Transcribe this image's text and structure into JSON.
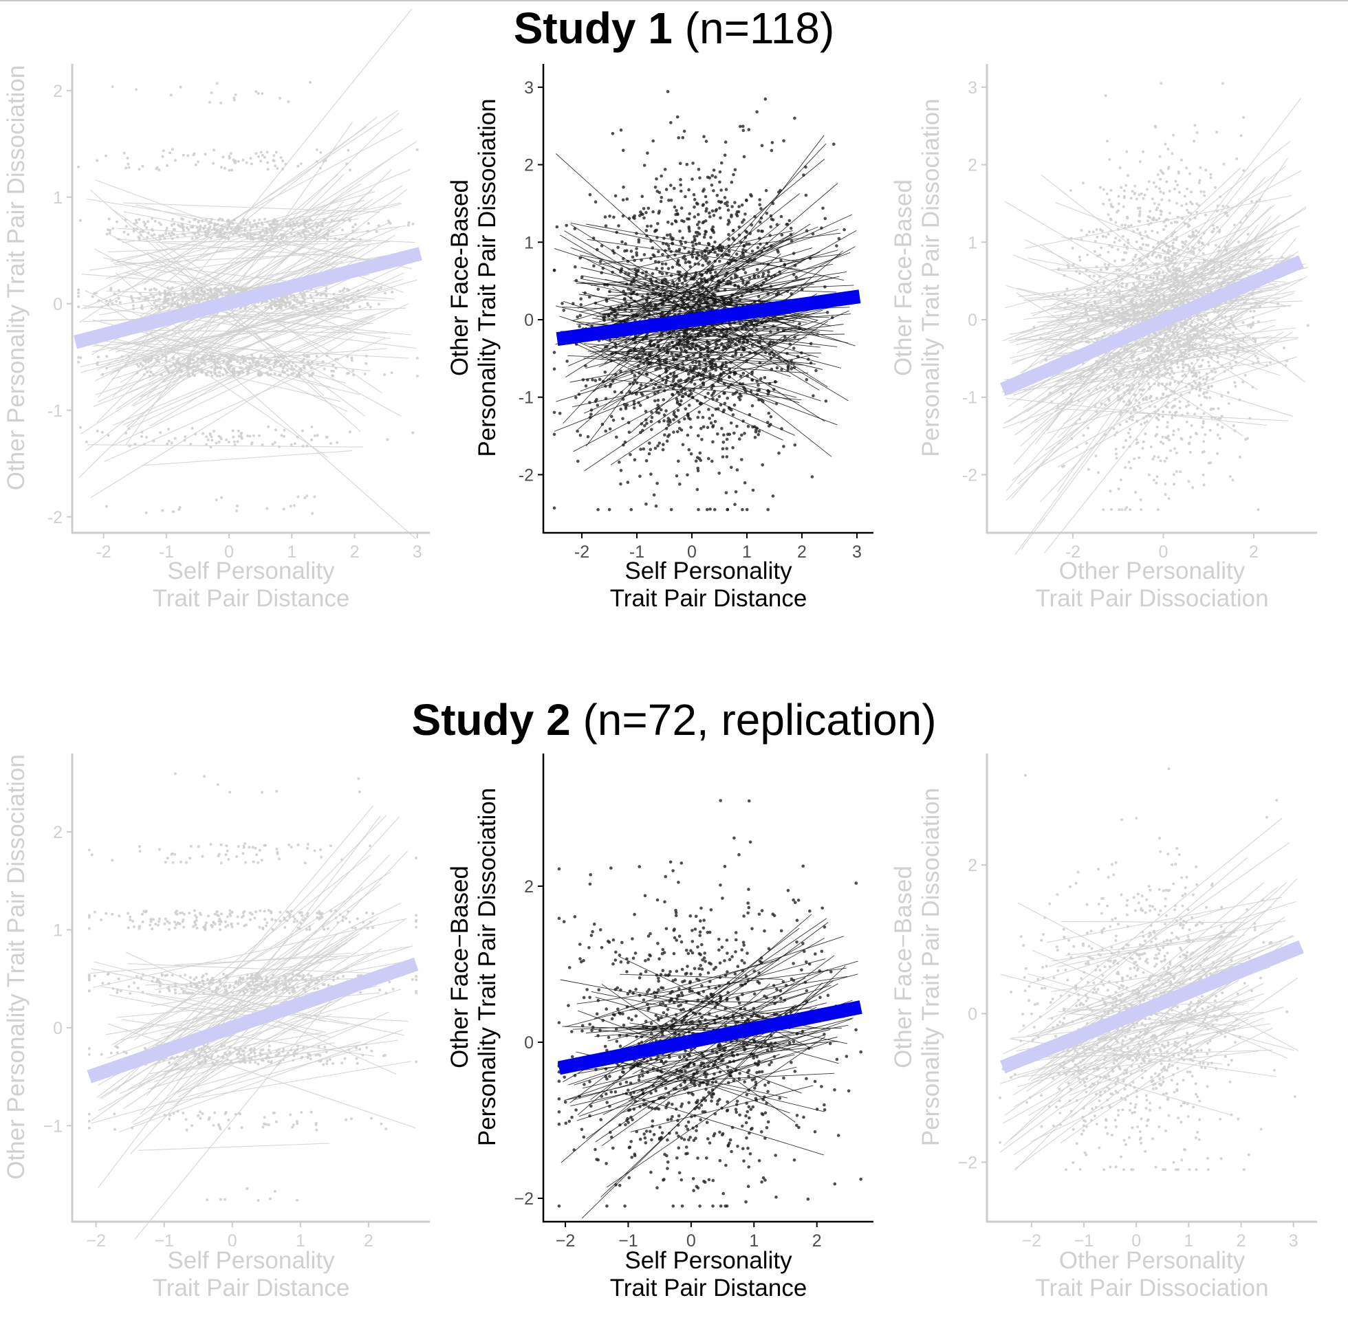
{
  "figure": {
    "studies": [
      {
        "title_bold": "Study 1",
        "title_rest": " (n=118)"
      },
      {
        "title_bold": "Study 2",
        "title_rest": " (n=72, replication)"
      }
    ],
    "colors": {
      "active_points": "#222222",
      "active_lines": "#111111",
      "active_fit": "#0000f0",
      "faded_points": "#cfcfcf",
      "faded_lines": "#d0d0d0",
      "faded_fit": "#ccccf7",
      "active_axis": "#000000",
      "faded_axis": "#cccccc",
      "active_text": "#000000",
      "faded_text": "#d0d0d0",
      "active_tick_text": "#4d4d4d"
    }
  },
  "chart_data": [
    {
      "id": "s1-left",
      "study": "Study 1 (n=118)",
      "type": "scatter",
      "faded": true,
      "xlabel": [
        "Self Personality",
        "Trait Pair Distance"
      ],
      "ylabel": [
        "Other Personality Trait Pair Dissociation"
      ],
      "xlim": [
        -2.5,
        3.2
      ],
      "ylim": [
        -2.15,
        2.25
      ],
      "xticks": [
        -2,
        -1,
        0,
        1,
        2,
        3
      ],
      "xtick_labels": [
        "-2",
        "-1",
        "0",
        "1",
        "2",
        "3"
      ],
      "yticks": [
        -2,
        -1,
        0,
        1,
        2
      ],
      "ytick_labels": [
        "-2",
        "-1",
        "0",
        "1",
        "2"
      ],
      "point_pattern": "discrete-rows",
      "row_levels": [
        -1.9,
        -1.25,
        -0.58,
        0.05,
        0.7,
        1.35,
        1.98
      ],
      "x_range_points": [
        -2.4,
        3.0
      ],
      "n_points": 1400,
      "n_subject_lines": 118,
      "fit_line": {
        "x": [
          -2.45,
          3.05
        ],
        "y": [
          -0.36,
          0.47
        ]
      }
    },
    {
      "id": "s1-center",
      "study": "Study 1 (n=118)",
      "type": "scatter",
      "faded": false,
      "xlabel": [
        "Self Personality",
        "Trait Pair Distance"
      ],
      "ylabel": [
        "Other Face-Based",
        "Personality Trait Pair Dissociation"
      ],
      "xlim": [
        -2.7,
        3.3
      ],
      "ylim": [
        -2.75,
        3.3
      ],
      "xticks": [
        -2,
        -1,
        0,
        1,
        2,
        3
      ],
      "xtick_labels": [
        "-2",
        "-1",
        "0",
        "1",
        "2",
        "3"
      ],
      "yticks": [
        -2,
        -1,
        0,
        1,
        2,
        3
      ],
      "ytick_labels": [
        "-2",
        "-1",
        "0",
        "1",
        "2",
        "3"
      ],
      "point_pattern": "cloud",
      "x_range_points": [
        -2.5,
        3.0
      ],
      "y_range_points": [
        -2.45,
        3.05
      ],
      "n_points": 1700,
      "n_subject_lines": 118,
      "fit_line": {
        "x": [
          -2.45,
          3.05
        ],
        "y": [
          -0.25,
          0.3
        ]
      }
    },
    {
      "id": "s1-right",
      "study": "Study 1 (n=118)",
      "type": "scatter",
      "faded": true,
      "xlabel": [
        "Other Personality",
        "Trait Pair Dissociation"
      ],
      "ylabel": [
        "Other Face-Based",
        "Personality Trait Pair Dissociation"
      ],
      "xlim": [
        -3.9,
        3.4
      ],
      "ylim": [
        -2.75,
        3.3
      ],
      "xticks": [
        -2,
        0,
        2
      ],
      "xtick_labels": [
        "-2",
        "0",
        "2"
      ],
      "yticks": [
        -2,
        -1,
        0,
        1,
        2,
        3
      ],
      "ytick_labels": [
        "-2",
        "-1",
        "0",
        "1",
        "2",
        "3"
      ],
      "point_pattern": "cloud",
      "x_range_points": [
        -3.6,
        3.2
      ],
      "y_range_points": [
        -2.45,
        3.05
      ],
      "n_points": 1700,
      "n_subject_lines": 118,
      "fit_line": {
        "x": [
          -3.55,
          3.05
        ],
        "y": [
          -0.9,
          0.75
        ]
      }
    },
    {
      "id": "s2-left",
      "study": "Study 2 (n=72, replication)",
      "type": "scatter",
      "faded": true,
      "xlabel": [
        "Self Personality",
        "Trait Pair Distance"
      ],
      "ylabel": [
        "Other Personality Trait Pair Dissociation"
      ],
      "xlim": [
        -2.35,
        2.9
      ],
      "ylim": [
        -1.98,
        2.8
      ],
      "xticks": [
        -2,
        -1,
        0,
        1,
        2
      ],
      "xtick_labels": [
        "−2",
        "−1",
        "0",
        "1",
        "2"
      ],
      "yticks": [
        -1,
        0,
        1,
        2
      ],
      "ytick_labels": [
        "−1",
        "0",
        "1",
        "2"
      ],
      "point_pattern": "discrete-rows",
      "row_levels": [
        -1.7,
        -0.95,
        -0.28,
        0.45,
        1.1,
        1.78,
        2.5
      ],
      "x_range_points": [
        -2.1,
        2.7
      ],
      "n_points": 800,
      "n_subject_lines": 72,
      "fit_line": {
        "x": [
          -2.1,
          2.7
        ],
        "y": [
          -0.5,
          0.65
        ]
      }
    },
    {
      "id": "s2-center",
      "study": "Study 2 (n=72, replication)",
      "type": "scatter",
      "faded": false,
      "xlabel": [
        "Self Personality",
        "Trait Pair Distance"
      ],
      "ylabel": [
        "Other Face−Based",
        "Personality Trait Pair Dissociation"
      ],
      "xlim": [
        -2.35,
        2.9
      ],
      "ylim": [
        -2.3,
        3.7
      ],
      "xticks": [
        -2,
        -1,
        0,
        1,
        2
      ],
      "xtick_labels": [
        "−2",
        "−1",
        "0",
        "1",
        "2"
      ],
      "yticks": [
        -2,
        0,
        2
      ],
      "ytick_labels": [
        "−2",
        "0",
        "2"
      ],
      "point_pattern": "cloud",
      "x_range_points": [
        -2.1,
        2.7
      ],
      "y_range_points": [
        -2.1,
        3.5
      ],
      "n_points": 1000,
      "n_subject_lines": 72,
      "fit_line": {
        "x": [
          -2.1,
          2.7
        ],
        "y": [
          -0.33,
          0.45
        ]
      }
    },
    {
      "id": "s2-right",
      "study": "Study 2 (n=72, replication)",
      "type": "scatter",
      "faded": true,
      "xlabel": [
        "Other Personality",
        "Trait Pair Dissociation"
      ],
      "ylabel": [
        "Other Face−Based",
        "Personality Trait Pair Dissociation"
      ],
      "xlim": [
        -2.85,
        3.45
      ],
      "ylim": [
        -2.8,
        3.5
      ],
      "xticks": [
        -2,
        -1,
        0,
        1,
        2,
        3
      ],
      "xtick_labels": [
        "−2",
        "−1",
        "0",
        "1",
        "2",
        "3"
      ],
      "yticks": [
        -2,
        0,
        2
      ],
      "ytick_labels": [
        "−2",
        "0",
        "2"
      ],
      "point_pattern": "cloud",
      "x_range_points": [
        -2.6,
        3.1
      ],
      "y_range_points": [
        -2.1,
        3.3
      ],
      "n_points": 1000,
      "n_subject_lines": 72,
      "fit_line": {
        "x": [
          -2.55,
          3.15
        ],
        "y": [
          -0.72,
          0.9
        ]
      }
    }
  ]
}
